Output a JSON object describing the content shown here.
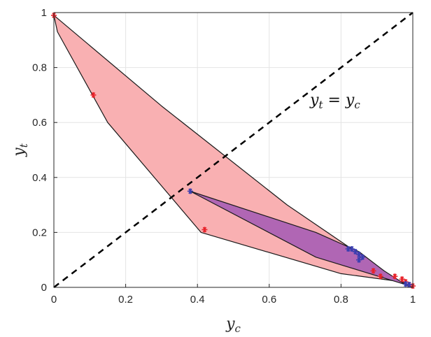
{
  "chart_data": {
    "type": "scatter",
    "xlabel": "y_c",
    "ylabel": "y_t",
    "xlim": [
      0,
      1
    ],
    "ylim": [
      0,
      1
    ],
    "grid": true,
    "x_ticks": [
      "0",
      "0.2",
      "0.4",
      "0.6",
      "0.8",
      "1"
    ],
    "y_ticks": [
      "0",
      "0.2",
      "0.4",
      "0.6",
      "0.8",
      "1"
    ],
    "annotation": "y_t = y_c",
    "diagonal": {
      "x": [
        0,
        1
      ],
      "y": [
        0,
        1
      ],
      "style": "dashed",
      "color": "#000000"
    },
    "regions": [
      {
        "fill": "#f9b0b2",
        "stroke": "#1a1a1a",
        "points": [
          [
            0,
            0.99
          ],
          [
            0.01,
            0.93
          ],
          [
            0.15,
            0.6
          ],
          [
            0.41,
            0.2
          ],
          [
            0.8,
            0.05
          ],
          [
            0.97,
            0.02
          ],
          [
            1,
            0
          ],
          [
            0.97,
            0.015
          ],
          [
            0.65,
            0.3
          ],
          [
            0.3,
            0.66
          ],
          [
            0,
            0.99
          ]
        ]
      },
      {
        "fill": "#b066b4",
        "stroke": "#1a1a1a",
        "points": [
          [
            0.38,
            0.35
          ],
          [
            0.73,
            0.2
          ],
          [
            0.85,
            0.13
          ],
          [
            0.92,
            0.06
          ],
          [
            0.98,
            0.01
          ],
          [
            0.73,
            0.11
          ],
          [
            0.38,
            0.35
          ]
        ]
      }
    ],
    "series": [
      {
        "color": "#e8232b",
        "marker": "asterisk",
        "x": [
          0.0,
          0.11,
          0.42,
          0.89,
          0.91,
          0.95,
          0.97,
          0.98,
          0.99,
          1.0
        ],
        "y": [
          0.99,
          0.7,
          0.21,
          0.06,
          0.04,
          0.04,
          0.03,
          0.02,
          0.01,
          0.005
        ]
      },
      {
        "color": "#3b3fb0",
        "marker": "asterisk",
        "x": [
          0.38,
          0.82,
          0.83,
          0.84,
          0.85,
          0.85,
          0.86,
          0.98,
          0.99
        ],
        "y": [
          0.35,
          0.14,
          0.14,
          0.13,
          0.12,
          0.1,
          0.11,
          0.012,
          0.01
        ]
      }
    ]
  }
}
